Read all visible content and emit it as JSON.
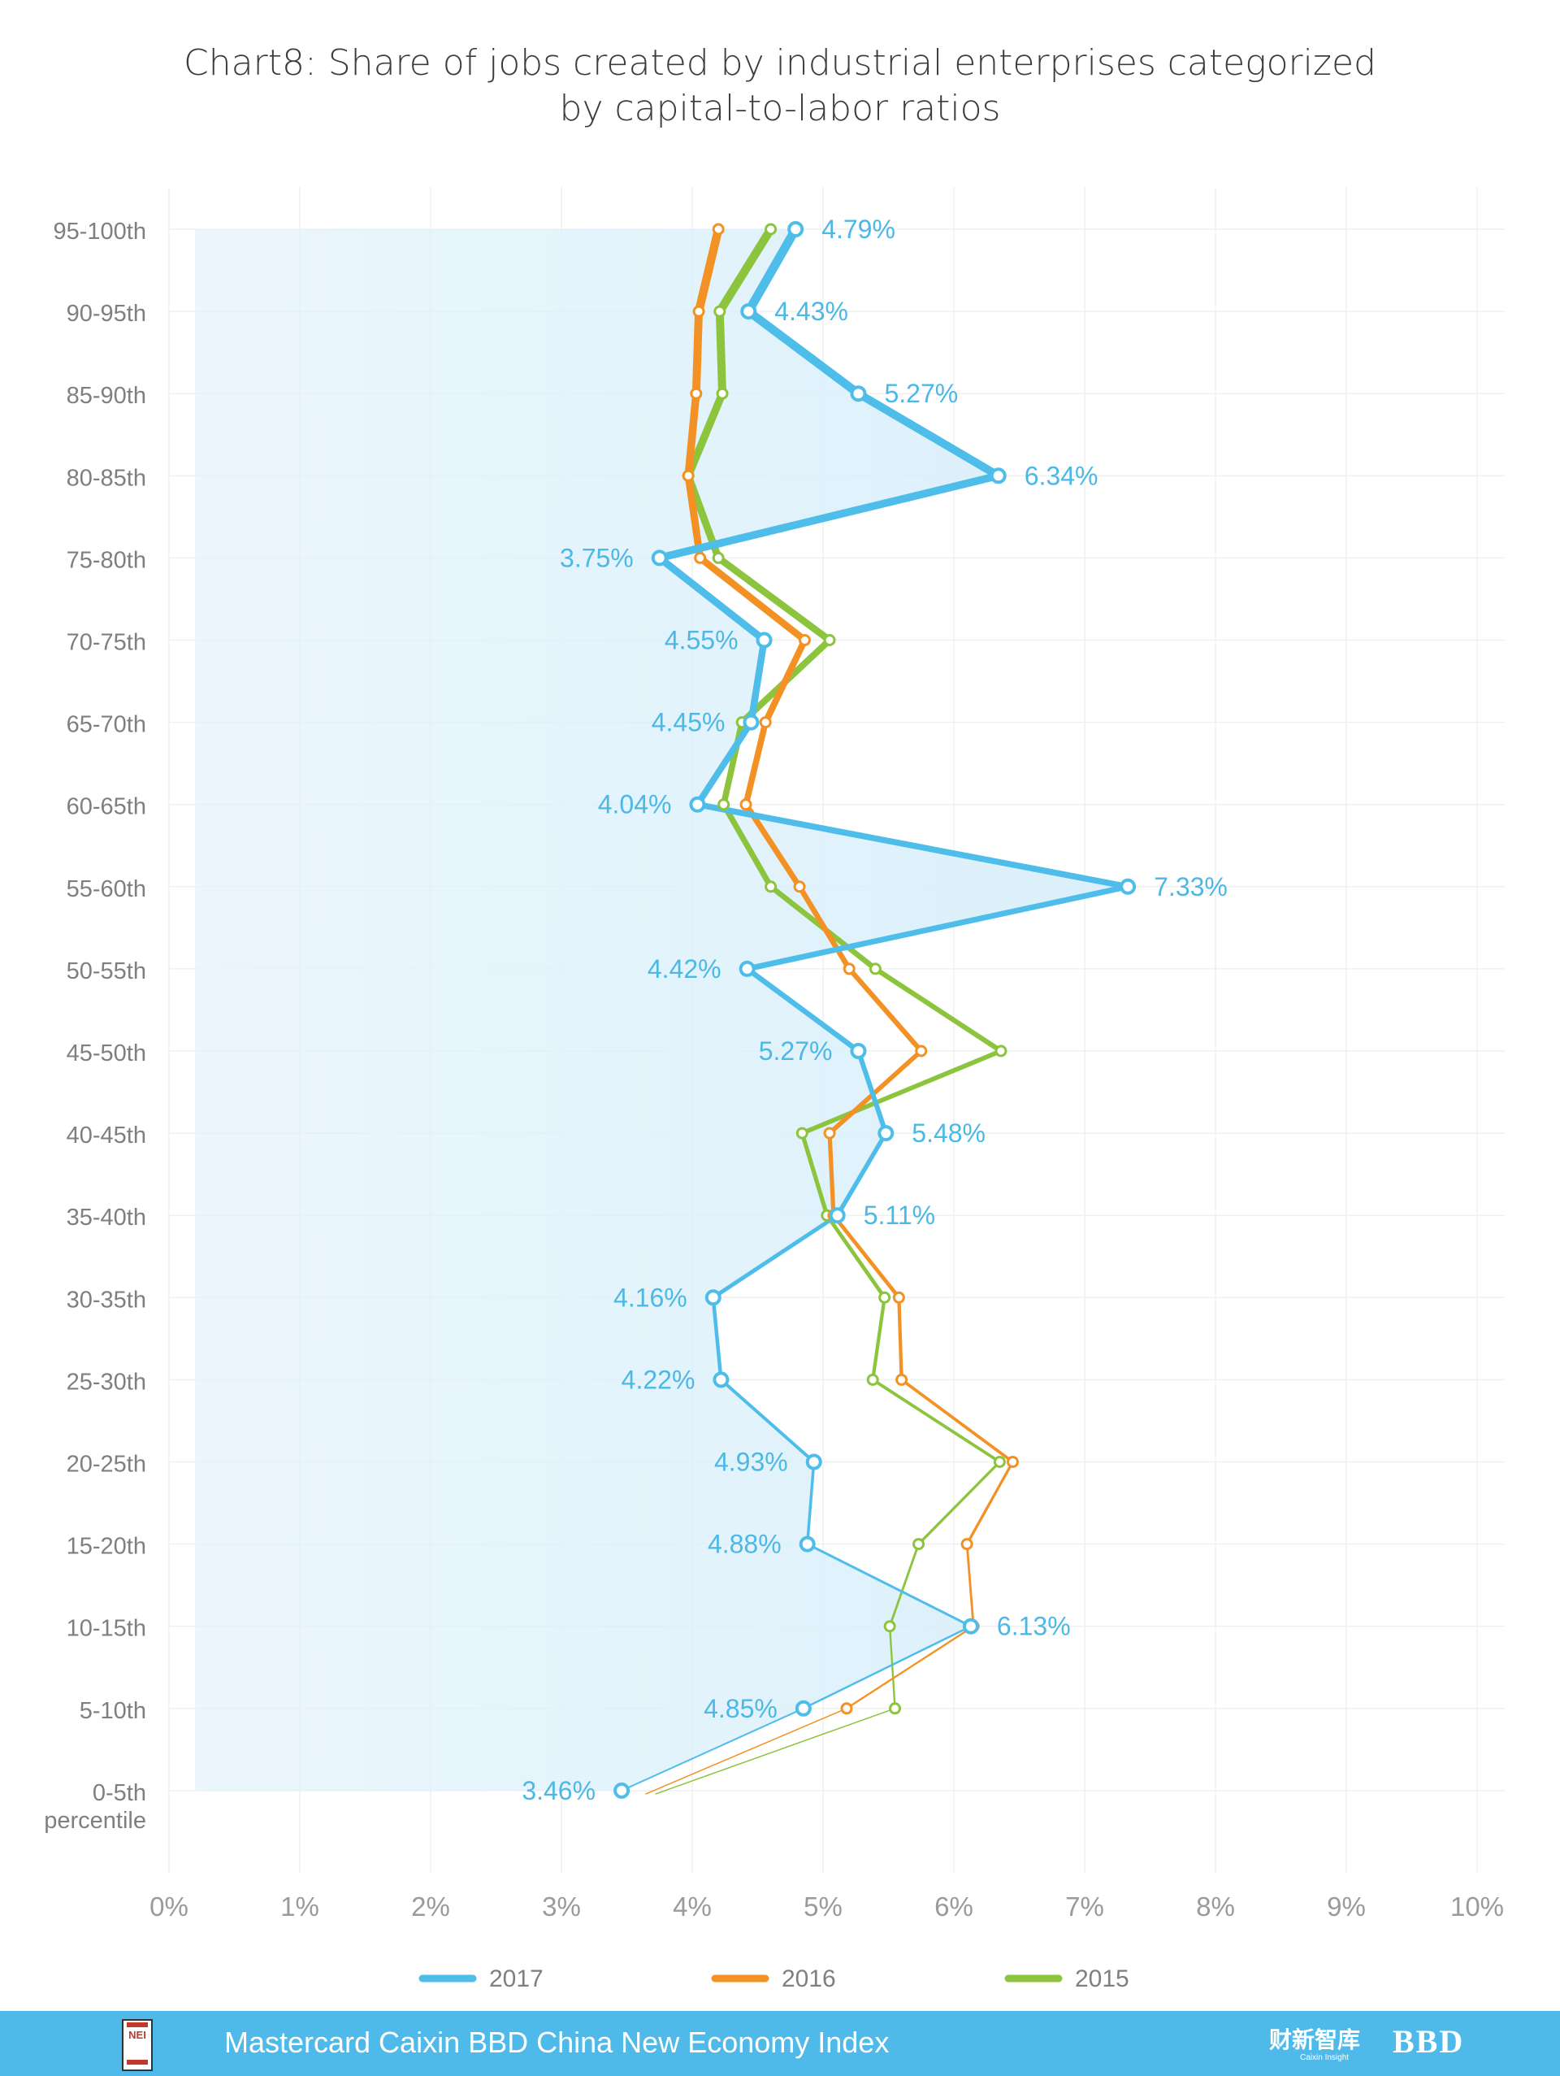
{
  "chart_data": {
    "type": "line",
    "title_lines": [
      "Chart8: Share of jobs created by industrial enterprises categorized",
      "by capital-to-labor ratios"
    ],
    "orientation": "horizontal",
    "categories": [
      "95-100th",
      "90-95th",
      "85-90th",
      "80-85th",
      "75-80th",
      "70-75th",
      "65-70th",
      "60-65th",
      "55-60th",
      "50-55th",
      "45-50th",
      "40-45th",
      "35-40th",
      "30-35th",
      "25-30th",
      "20-25th",
      "15-20th",
      "10-15th",
      "5-10th",
      "0-5th percentile"
    ],
    "xlim": [
      0,
      10
    ],
    "x_ticks": [
      "0%",
      "1%",
      "2%",
      "3%",
      "4%",
      "5%",
      "6%",
      "7%",
      "8%",
      "9%",
      "10%"
    ],
    "grid": true,
    "legend_position": "bottom",
    "series": [
      {
        "name": "2017",
        "color": "#4fbde9",
        "values": [
          4.79,
          4.43,
          5.27,
          6.34,
          3.75,
          4.55,
          4.45,
          4.04,
          7.33,
          4.42,
          5.27,
          5.48,
          5.11,
          4.16,
          4.22,
          4.93,
          4.88,
          6.13,
          4.85,
          3.46
        ],
        "labels": [
          "4.79%",
          "4.43%",
          "5.27%",
          "6.34%",
          "3.75%",
          "4.55%",
          "4.45%",
          "4.04%",
          "7.33%",
          "4.42%",
          "5.27%",
          "5.48%",
          "5.11%",
          "4.16%",
          "4.22%",
          "4.93%",
          "4.88%",
          "6.13%",
          "4.85%",
          "3.46%"
        ]
      },
      {
        "name": "2016",
        "color": "#f39124",
        "values": [
          4.2,
          4.05,
          4.03,
          3.97,
          4.06,
          4.86,
          4.56,
          4.41,
          4.82,
          5.2,
          5.75,
          5.05,
          5.08,
          5.58,
          5.6,
          6.45,
          6.1,
          6.15,
          5.18,
          null
        ]
      },
      {
        "name": "2015",
        "color": "#8cc43e",
        "values": [
          4.6,
          4.21,
          4.23,
          3.97,
          4.2,
          5.05,
          4.38,
          4.24,
          4.6,
          5.4,
          6.36,
          4.84,
          5.03,
          5.47,
          5.38,
          6.35,
          5.73,
          5.51,
          5.55,
          null
        ]
      }
    ]
  },
  "footer": {
    "title": "Mastercard Caixin BBD China New Economy Index",
    "nei_logo_text": "NEI",
    "caixin_logo": "财新智库",
    "caixin_sub": "Caixin Insight",
    "bbd_logo": "BBD"
  }
}
